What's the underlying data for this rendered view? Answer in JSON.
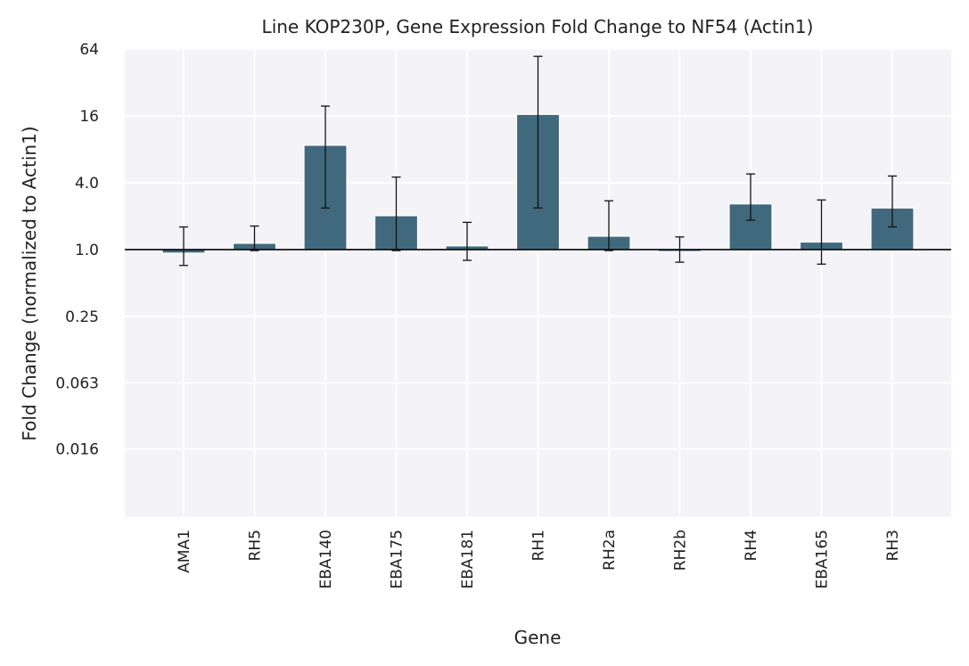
{
  "chart_data": {
    "type": "bar",
    "title": "Line KOP230P, Gene Expression Fold Change to NF54 (Actin1)",
    "xlabel": "Gene",
    "ylabel": "Fold Change (normalized to Actin1)",
    "yscale": "log2",
    "ylim": [
      0.0039,
      64
    ],
    "yticks": [
      0.016,
      0.063,
      0.25,
      1.0,
      4.0,
      16,
      64
    ],
    "ytick_labels": [
      "0.016",
      "0.063",
      "0.25",
      "1.0",
      "4.0",
      "16",
      "64"
    ],
    "reference_line": 1.0,
    "grid": true,
    "legend": "none",
    "bar_color": "#41697e",
    "background_color": "#f4f4f8",
    "categories": [
      "AMA1",
      "RH5",
      "EBA140",
      "EBA175",
      "EBA181",
      "RH1",
      "RH2a",
      "RH2b",
      "RH4",
      "EBA165",
      "RH3"
    ],
    "values": [
      0.93,
      1.14,
      8.7,
      2.02,
      1.08,
      16.5,
      1.32,
      0.96,
      2.58,
      1.17,
      2.37
    ],
    "error_low": [
      0.72,
      0.98,
      2.37,
      0.98,
      0.8,
      2.37,
      0.98,
      0.77,
      1.84,
      0.74,
      1.6
    ],
    "error_high": [
      1.6,
      1.63,
      19.6,
      4.5,
      1.76,
      55,
      2.75,
      1.3,
      4.8,
      2.8,
      4.6
    ]
  }
}
